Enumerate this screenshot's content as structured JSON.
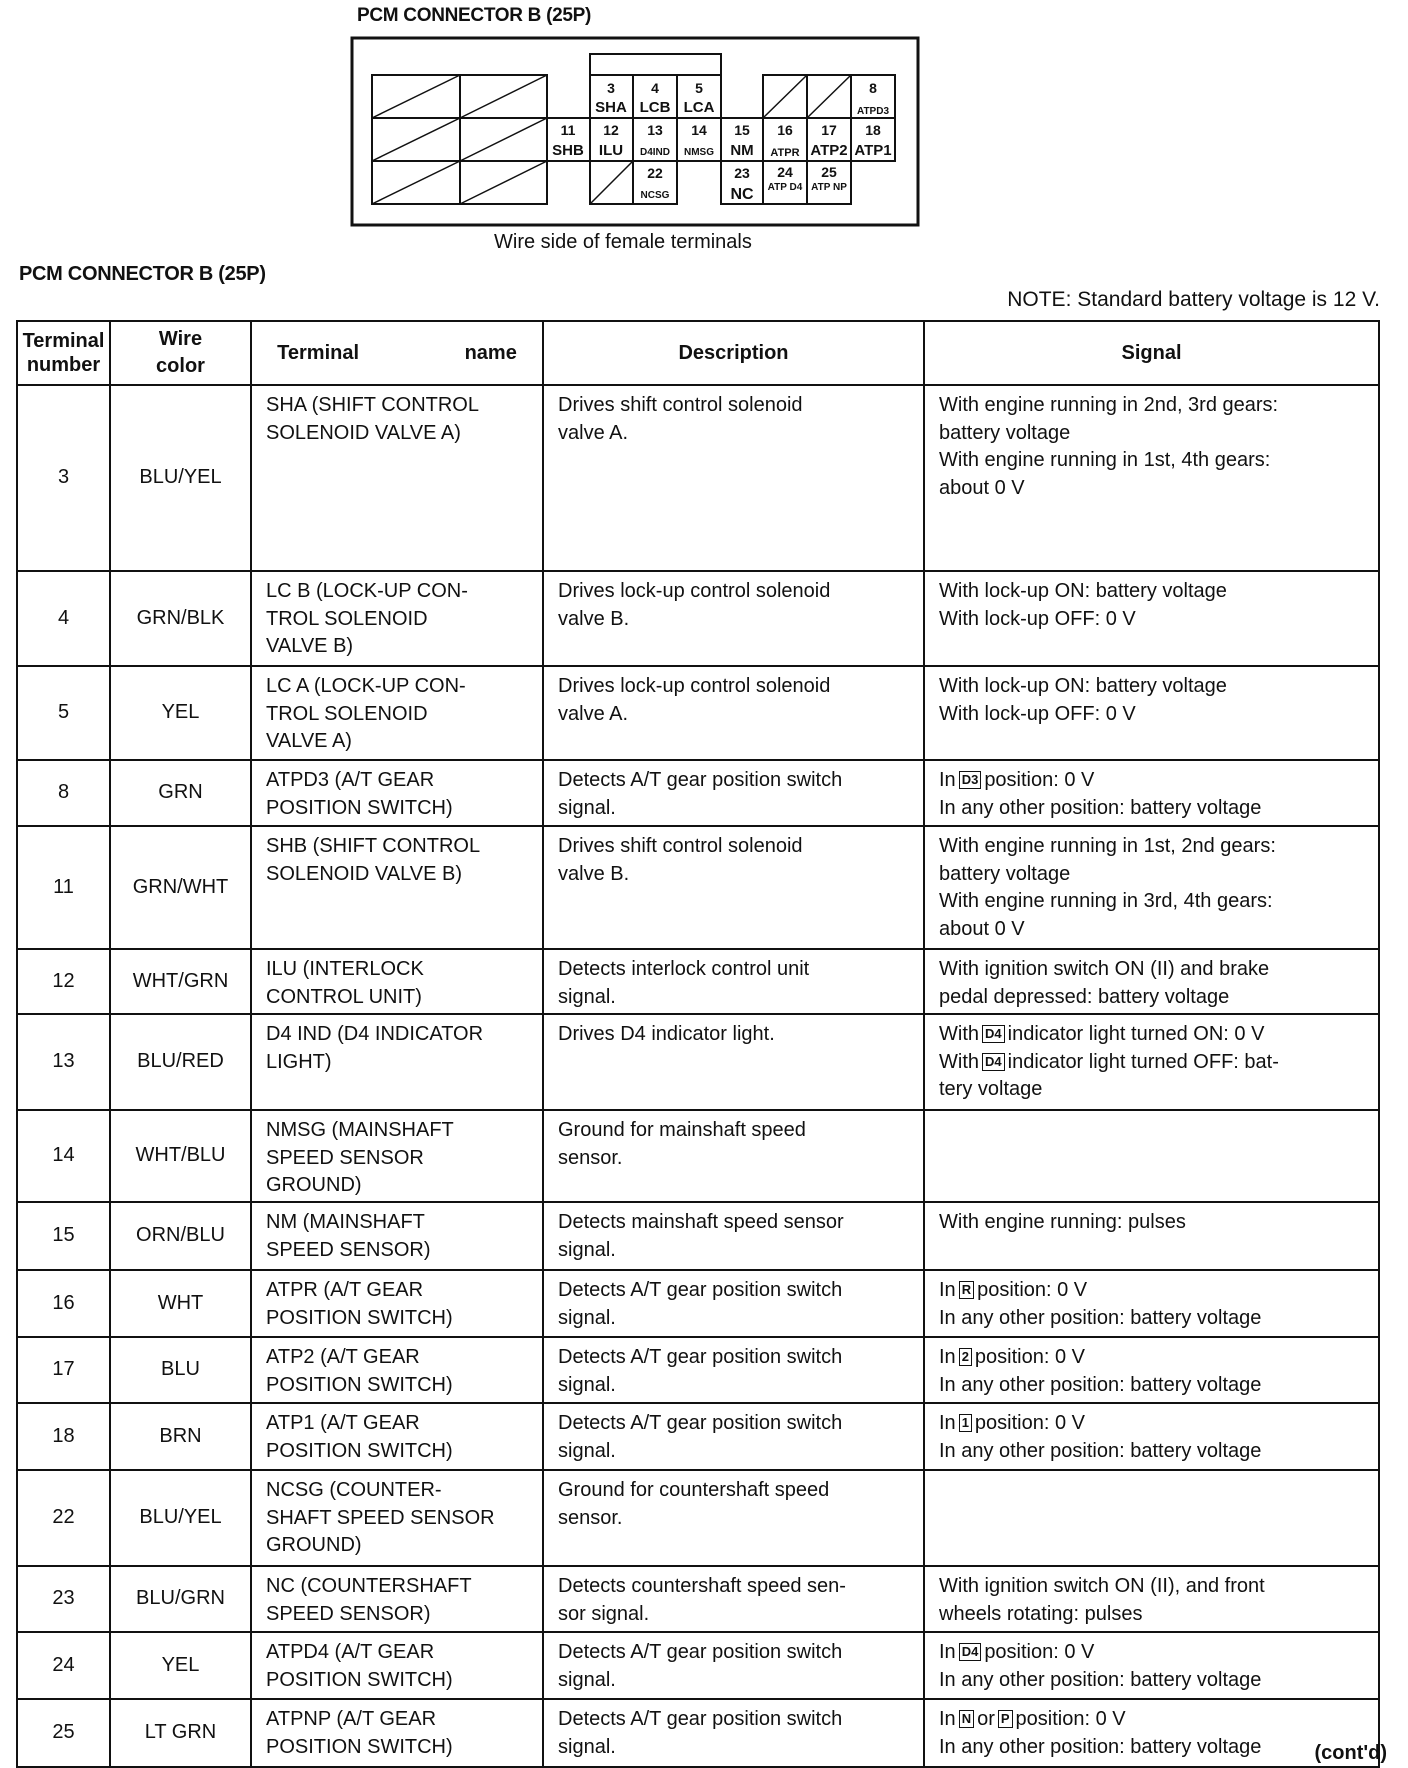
{
  "diagram": {
    "title": "PCM CONNECTOR B (25P)",
    "caption": "Wire side of female terminals",
    "terminals": [
      {
        "num": "3",
        "label": "SHA"
      },
      {
        "num": "4",
        "label": "LCB"
      },
      {
        "num": "5",
        "label": "LCA"
      },
      {
        "num": "8",
        "label": "ATPD3"
      },
      {
        "num": "11",
        "label": "SHB"
      },
      {
        "num": "12",
        "label": "ILU"
      },
      {
        "num": "13",
        "label": "D4IND"
      },
      {
        "num": "14",
        "label": "NMSG"
      },
      {
        "num": "15",
        "label": "NM"
      },
      {
        "num": "16",
        "label": "ATPR"
      },
      {
        "num": "17",
        "label": "ATP2"
      },
      {
        "num": "18",
        "label": "ATP1"
      },
      {
        "num": "22",
        "label": "NCSG"
      },
      {
        "num": "23",
        "label": "NC"
      },
      {
        "num": "24",
        "label": "ATP D4"
      },
      {
        "num": "25",
        "label": "ATP NP"
      }
    ]
  },
  "section_title": "PCM CONNECTOR B (25P)",
  "note": "NOTE:  Standard battery voltage is 12 V.",
  "table": {
    "headers": [
      "Terminal number",
      "Wire color",
      "Terminal name",
      "Description",
      "Signal"
    ],
    "rows": [
      {
        "terminal": "3",
        "wire": "BLU/YEL",
        "name": [
          "SHA (SHIFT CONTROL",
          "SOLENOID VALVE A)"
        ],
        "description": [
          "Drives shift control solenoid",
          "valve A."
        ],
        "signal": [
          [
            "With engine running in 2nd, 3rd gears:"
          ],
          [
            "battery voltage"
          ],
          [
            "With engine running in 1st, 4th gears:"
          ],
          [
            "about 0 V"
          ]
        ]
      },
      {
        "terminal": "4",
        "wire": "GRN/BLK",
        "name": [
          "LC B (LOCK-UP CON-",
          "TROL SOLENOID",
          "VALVE B)"
        ],
        "description": [
          "Drives lock-up control solenoid",
          "valve B."
        ],
        "signal": [
          [
            "With lock-up ON: battery voltage"
          ],
          [
            "With lock-up OFF: 0 V"
          ]
        ]
      },
      {
        "terminal": "5",
        "wire": "YEL",
        "name": [
          "LC A (LOCK-UP CON-",
          "TROL SOLENOID",
          "VALVE A)"
        ],
        "description": [
          "Drives lock-up control solenoid",
          "valve A."
        ],
        "signal": [
          [
            "With lock-up ON: battery voltage"
          ],
          [
            "With lock-up OFF: 0 V"
          ]
        ]
      },
      {
        "terminal": "8",
        "wire": "GRN",
        "name": [
          "ATPD3 (A/T GEAR",
          "POSITION SWITCH)"
        ],
        "description": [
          "Detects A/T gear position switch",
          "signal."
        ],
        "signal": [
          [
            "In",
            {
              "box": "D3"
            },
            "position: 0 V"
          ],
          [
            "In any other position: battery voltage"
          ]
        ]
      },
      {
        "terminal": "11",
        "wire": "GRN/WHT",
        "name": [
          "SHB (SHIFT CONTROL",
          "SOLENOID VALVE B)"
        ],
        "description": [
          "Drives shift control solenoid",
          "valve B."
        ],
        "signal": [
          [
            "With engine running in 1st, 2nd gears:"
          ],
          [
            "battery voltage"
          ],
          [
            "With engine running in 3rd, 4th gears:"
          ],
          [
            "about 0 V"
          ]
        ]
      },
      {
        "terminal": "12",
        "wire": "WHT/GRN",
        "name": [
          "ILU (INTERLOCK",
          "CONTROL UNIT)"
        ],
        "description": [
          "Detects interlock control unit",
          "signal."
        ],
        "signal": [
          [
            "With ignition switch ON (II) and brake"
          ],
          [
            "pedal depressed: battery voltage"
          ]
        ]
      },
      {
        "terminal": "13",
        "wire": "BLU/RED",
        "name": [
          "D4 IND (D4 INDICATOR",
          "LIGHT)"
        ],
        "description": [
          "Drives D4 indicator light."
        ],
        "signal": [
          [
            "With",
            {
              "box": "D4"
            },
            "indicator light turned ON: 0 V"
          ],
          [
            "With",
            {
              "box": "D4"
            },
            "indicator light turned OFF: bat-"
          ],
          [
            "tery voltage"
          ]
        ]
      },
      {
        "terminal": "14",
        "wire": "WHT/BLU",
        "name": [
          "NMSG (MAINSHAFT",
          "SPEED SENSOR",
          "GROUND)"
        ],
        "description": [
          "Ground for mainshaft speed",
          "sensor."
        ],
        "signal": []
      },
      {
        "terminal": "15",
        "wire": "ORN/BLU",
        "name": [
          "NM (MAINSHAFT",
          "SPEED SENSOR)"
        ],
        "description": [
          "Detects mainshaft speed sensor",
          "signal."
        ],
        "signal": [
          [
            "With engine running: pulses"
          ]
        ]
      },
      {
        "terminal": "16",
        "wire": "WHT",
        "name": [
          "ATPR (A/T GEAR",
          "POSITION SWITCH)"
        ],
        "description": [
          "Detects A/T gear position switch",
          "signal."
        ],
        "signal": [
          [
            "In",
            {
              "box": "R"
            },
            "position: 0 V"
          ],
          [
            "In any other position: battery voltage"
          ]
        ]
      },
      {
        "terminal": "17",
        "wire": "BLU",
        "name": [
          "ATP2 (A/T GEAR",
          "POSITION SWITCH)"
        ],
        "description": [
          "Detects A/T gear position switch",
          "signal."
        ],
        "signal": [
          [
            "In",
            {
              "box": "2"
            },
            "position: 0 V"
          ],
          [
            "In any other position: battery voltage"
          ]
        ]
      },
      {
        "terminal": "18",
        "wire": "BRN",
        "name": [
          "ATP1 (A/T GEAR",
          "POSITION SWITCH)"
        ],
        "description": [
          "Detects A/T gear position switch",
          "signal."
        ],
        "signal": [
          [
            "In",
            {
              "box": "1"
            },
            "position: 0 V"
          ],
          [
            "In any other position: battery voltage"
          ]
        ]
      },
      {
        "terminal": "22",
        "wire": "BLU/YEL",
        "name": [
          "NCSG (COUNTER-",
          "SHAFT SPEED SENSOR",
          "GROUND)"
        ],
        "description": [
          "Ground for countershaft speed",
          "sensor."
        ],
        "signal": []
      },
      {
        "terminal": "23",
        "wire": "BLU/GRN",
        "name": [
          "NC (COUNTERSHAFT",
          "SPEED SENSOR)"
        ],
        "description": [
          "Detects countershaft speed sen-",
          "sor signal."
        ],
        "signal": [
          [
            "With ignition switch ON (II), and front"
          ],
          [
            "wheels rotating: pulses"
          ]
        ]
      },
      {
        "terminal": "24",
        "wire": "YEL",
        "name": [
          "ATPD4 (A/T GEAR",
          "POSITION SWITCH)"
        ],
        "description": [
          "Detects A/T gear position switch",
          "signal."
        ],
        "signal": [
          [
            "In",
            {
              "box": "D4"
            },
            "position: 0 V"
          ],
          [
            "In any other position: battery voltage"
          ]
        ]
      },
      {
        "terminal": "25",
        "wire": "LT GRN",
        "name": [
          "ATPNP (A/T GEAR",
          "POSITION SWITCH)"
        ],
        "description": [
          "Detects A/T gear position switch",
          "signal."
        ],
        "signal": [
          [
            "In",
            {
              "box": "N"
            },
            "or",
            {
              "box": "P"
            },
            "position: 0 V"
          ],
          [
            "In any other position: battery voltage"
          ]
        ]
      }
    ]
  },
  "footer": "(cont'd)"
}
